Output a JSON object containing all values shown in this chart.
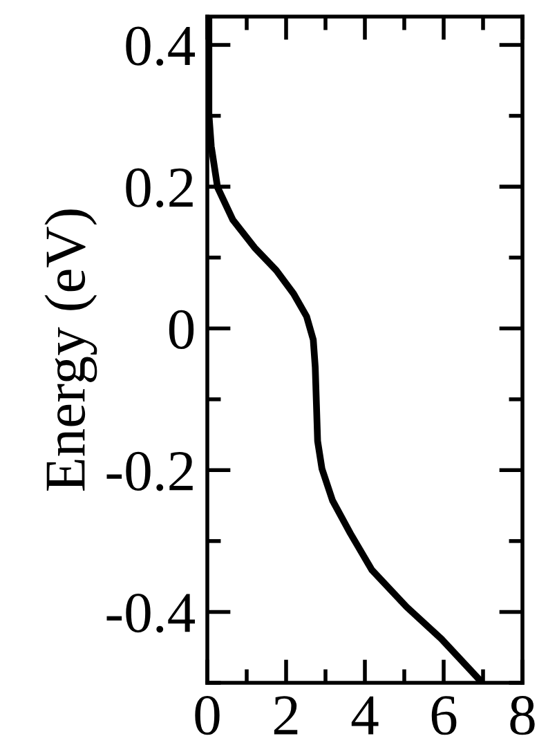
{
  "chart_data": {
    "type": "line",
    "ylabel": "Energy (eV)",
    "xlim": [
      0,
      8
    ],
    "ylim": [
      -0.5,
      0.44
    ],
    "xticks": [
      0,
      {
        "value": 1,
        "label": null
      },
      2,
      {
        "value": 3,
        "label": null
      },
      4,
      {
        "value": 5,
        "label": null
      },
      6,
      {
        "value": 7,
        "label": null
      },
      8
    ],
    "yticks": [
      {
        "value": -0.5,
        "label": null
      },
      -0.4,
      {
        "value": -0.3,
        "label": null
      },
      -0.2,
      {
        "value": -0.1,
        "label": null
      },
      0,
      {
        "value": 0.1,
        "label": null
      },
      0.2,
      {
        "value": 0.3,
        "label": null
      },
      0.4
    ],
    "grid": false,
    "line_style": "solid",
    "series": [
      {
        "color": "#000000",
        "x": [
          0.04,
          0.04,
          0.1,
          0.26,
          0.65,
          1.2,
          1.75,
          2.19,
          2.52,
          2.69,
          2.74,
          2.77,
          2.8,
          2.91,
          3.18,
          3.63,
          4.18,
          5.06,
          5.94,
          6.93
        ],
        "values": [
          0.44,
          0.303,
          0.257,
          0.199,
          0.153,
          0.114,
          0.082,
          0.049,
          0.017,
          -0.016,
          -0.055,
          -0.107,
          -0.159,
          -0.198,
          -0.243,
          -0.289,
          -0.341,
          -0.393,
          -0.438,
          -0.497
        ]
      }
    ]
  }
}
